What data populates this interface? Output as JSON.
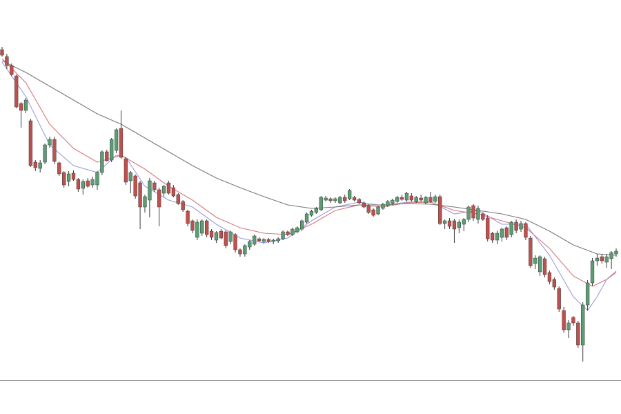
{
  "chart_data": {
    "type": "candlestick",
    "up_color": "#5b9e74",
    "down_color": "#c0504d",
    "wick_color": "#3a3a3a",
    "ylim": [
      50,
      600
    ],
    "candles": [
      [
        528,
        532,
        518,
        520
      ],
      [
        518,
        522,
        500,
        505
      ],
      [
        505,
        508,
        490,
        492
      ],
      [
        490,
        492,
        443,
        445
      ],
      [
        450,
        452,
        415,
        440
      ],
      [
        440,
        458,
        436,
        455
      ],
      [
        425,
        428,
        358,
        360
      ],
      [
        365,
        368,
        352,
        357
      ],
      [
        356,
        368,
        350,
        364
      ],
      [
        365,
        392,
        362,
        390
      ],
      [
        390,
        402,
        386,
        398
      ],
      [
        398,
        402,
        362,
        366
      ],
      [
        364,
        366,
        345,
        348
      ],
      [
        350,
        352,
        328,
        332
      ],
      [
        337,
        352,
        330,
        348
      ],
      [
        349,
        353,
        338,
        340
      ],
      [
        340,
        342,
        322,
        326
      ],
      [
        327,
        340,
        318,
        337
      ],
      [
        338,
        342,
        328,
        330
      ],
      [
        332,
        344,
        328,
        340
      ],
      [
        332,
        352,
        325,
        350
      ],
      [
        350,
        382,
        346,
        380
      ],
      [
        380,
        383,
        366,
        367
      ],
      [
        368,
        400,
        365,
        398
      ],
      [
        382,
        414,
        378,
        412
      ],
      [
        414,
        440,
        370,
        372
      ],
      [
        370,
        372,
        332,
        336
      ],
      [
        338,
        352,
        320,
        350
      ],
      [
        345,
        347,
        312,
        316
      ],
      [
        335,
        338,
        268,
        300
      ],
      [
        300,
        318,
        292,
        315
      ],
      [
        310,
        342,
        285,
        338
      ],
      [
        335,
        338,
        322,
        325
      ],
      [
        325,
        328,
        272,
        300
      ],
      [
        320,
        332,
        315,
        330
      ],
      [
        335,
        338,
        318,
        320
      ],
      [
        328,
        332,
        314,
        316
      ],
      [
        318,
        320,
        303,
        305
      ],
      [
        308,
        310,
        293,
        296
      ],
      [
        294,
        296,
        272,
        276
      ],
      [
        280,
        282,
        262,
        266
      ],
      [
        256,
        282,
        252,
        278
      ],
      [
        262,
        282,
        258,
        280
      ],
      [
        280,
        282,
        256,
        260
      ],
      [
        265,
        268,
        252,
        256
      ],
      [
        252,
        265,
        248,
        263
      ],
      [
        265,
        268,
        253,
        255
      ],
      [
        264,
        266,
        240,
        244
      ],
      [
        250,
        266,
        246,
        264
      ],
      [
        260,
        262,
        234,
        238
      ],
      [
        238,
        240,
        228,
        232
      ],
      [
        232,
        246,
        228,
        244
      ],
      [
        242,
        252,
        238,
        250
      ],
      [
        246,
        260,
        244,
        258
      ],
      [
        254,
        256,
        249,
        251
      ],
      [
        250,
        255,
        247,
        253
      ],
      [
        253,
        255,
        248,
        250
      ],
      [
        250,
        254,
        246,
        252
      ],
      [
        251,
        256,
        248,
        254
      ],
      [
        254,
        266,
        252,
        264
      ],
      [
        264,
        266,
        258,
        260
      ],
      [
        260,
        270,
        258,
        268
      ],
      [
        264,
        272,
        262,
        270
      ],
      [
        268,
        282,
        265,
        280
      ],
      [
        278,
        292,
        276,
        290
      ],
      [
        288,
        296,
        286,
        294
      ],
      [
        292,
        300,
        290,
        298
      ],
      [
        296,
        316,
        294,
        314
      ],
      [
        310,
        316,
        308,
        313
      ],
      [
        312,
        314,
        306,
        309
      ],
      [
        309,
        314,
        306,
        312
      ],
      [
        306,
        316,
        304,
        314
      ],
      [
        314,
        318,
        306,
        309
      ],
      [
        312,
        326,
        310,
        324
      ],
      [
        314,
        316,
        308,
        310
      ],
      [
        311,
        313,
        304,
        306
      ],
      [
        306,
        308,
        298,
        300
      ],
      [
        302,
        304,
        290,
        292
      ],
      [
        296,
        298,
        286,
        288
      ],
      [
        290,
        302,
        288,
        300
      ],
      [
        298,
        306,
        296,
        304
      ],
      [
        302,
        310,
        300,
        308
      ],
      [
        305,
        312,
        303,
        310
      ],
      [
        308,
        316,
        306,
        314
      ],
      [
        314,
        318,
        309,
        311
      ],
      [
        310,
        322,
        308,
        320
      ],
      [
        316,
        320,
        308,
        310
      ],
      [
        308,
        316,
        306,
        314
      ],
      [
        313,
        318,
        308,
        310
      ],
      [
        306,
        316,
        304,
        314
      ],
      [
        314,
        322,
        306,
        308
      ],
      [
        308,
        318,
        306,
        315
      ],
      [
        315,
        318,
        274,
        276
      ],
      [
        276,
        282,
        268,
        280
      ],
      [
        280,
        284,
        268,
        272
      ],
      [
        280,
        283,
        248,
        268
      ],
      [
        270,
        282,
        262,
        278
      ],
      [
        275,
        284,
        265,
        282
      ],
      [
        282,
        302,
        278,
        300
      ],
      [
        302,
        304,
        280,
        284
      ],
      [
        282,
        302,
        276,
        298
      ],
      [
        290,
        292,
        280,
        282
      ],
      [
        284,
        288,
        250,
        254
      ],
      [
        262,
        264,
        248,
        252
      ],
      [
        252,
        266,
        246,
        262
      ],
      [
        256,
        270,
        250,
        268
      ],
      [
        270,
        272,
        252,
        256
      ],
      [
        260,
        280,
        256,
        278
      ],
      [
        278,
        282,
        262,
        266
      ],
      [
        268,
        280,
        264,
        276
      ],
      [
        276,
        278,
        252,
        256
      ],
      [
        255,
        258,
        212,
        215
      ],
      [
        218,
        230,
        210,
        226
      ],
      [
        206,
        230,
        200,
        228
      ],
      [
        225,
        228,
        198,
        202
      ],
      [
        205,
        208,
        188,
        192
      ],
      [
        195,
        198,
        180,
        184
      ],
      [
        182,
        185,
        148,
        152
      ],
      [
        150,
        155,
        118,
        122
      ],
      [
        122,
        136,
        110,
        132
      ],
      [
        140,
        142,
        128,
        132
      ],
      [
        132,
        135,
        96,
        100
      ],
      [
        100,
        162,
        76,
        158
      ],
      [
        158,
        194,
        150,
        190
      ],
      [
        190,
        226,
        186,
        222
      ],
      [
        222,
        232,
        215,
        226
      ],
      [
        228,
        232,
        218,
        222
      ],
      [
        220,
        232,
        212,
        228
      ],
      [
        225,
        236,
        210,
        234
      ],
      [
        232,
        240,
        228,
        236
      ]
    ],
    "lines": [
      {
        "color": "#9a9ae0",
        "x": [
          0,
          5,
          10,
          15,
          20,
          24,
          26,
          30,
          35,
          40,
          45,
          50,
          55,
          60,
          65,
          70,
          75,
          80,
          85,
          90,
          95,
          100,
          105,
          110,
          115,
          120,
          123,
          125,
          127,
          129
        ],
        "values": [
          510,
          460,
          390,
          360,
          350,
          375,
          372,
          330,
          310,
          300,
          275,
          255,
          248,
          255,
          280,
          300,
          307,
          302,
          307,
          308,
          290,
          295,
          275,
          275,
          230,
          170,
          150,
          170,
          195,
          205
        ]
      },
      {
        "color": "#d9777a",
        "x": [
          0,
          5,
          10,
          15,
          20,
          25,
          30,
          35,
          40,
          45,
          50,
          55,
          60,
          65,
          70,
          75,
          80,
          85,
          90,
          95,
          100,
          105,
          110,
          115,
          120,
          124,
          127,
          129
        ],
        "values": [
          515,
          480,
          420,
          385,
          365,
          375,
          355,
          330,
          310,
          285,
          270,
          262,
          260,
          275,
          295,
          303,
          300,
          306,
          307,
          295,
          290,
          280,
          270,
          240,
          200,
          185,
          195,
          207
        ]
      },
      {
        "color": "#777777",
        "x": [
          0,
          5,
          10,
          15,
          20,
          25,
          30,
          35,
          40,
          45,
          50,
          55,
          60,
          65,
          70,
          75,
          80,
          85,
          90,
          95,
          100,
          105,
          110,
          115,
          120,
          125,
          129
        ],
        "values": [
          512,
          495,
          475,
          455,
          435,
          420,
          400,
          380,
          360,
          342,
          328,
          315,
          303,
          298,
          300,
          303,
          303,
          305,
          304,
          300,
          295,
          290,
          282,
          265,
          245,
          232,
          230
        ]
      }
    ]
  }
}
